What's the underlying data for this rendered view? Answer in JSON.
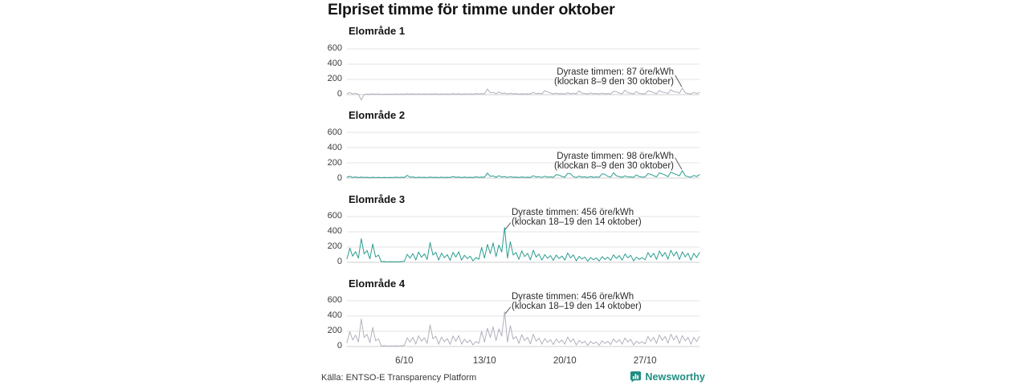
{
  "title": "Elpriset timme för timme under oktober",
  "source": "Källa: ENTSO-E Transparency Platform",
  "brand": {
    "name": "Newsworthy",
    "color": "#208f82",
    "icon": "bar-chart-speech-bubble"
  },
  "colors": {
    "teal_line": "#2a9d8f",
    "gray_line": "#b0b1bc",
    "grid": "#e3e3e3",
    "zero_line": "#cfcfcf",
    "annotation_pointer": "#4a4a4a",
    "text_dark": "#141414"
  },
  "axis": {
    "y_tick_labels": [
      "600",
      "400",
      "200",
      "0"
    ],
    "y_tick_values": [
      600,
      400,
      200,
      0
    ],
    "x_ticks": [
      {
        "label": "6/10",
        "day": 6
      },
      {
        "label": "13/10",
        "day": 13
      },
      {
        "label": "20/10",
        "day": 20
      },
      {
        "label": "27/10",
        "day": 27
      }
    ]
  },
  "chart_data": {
    "type": "line",
    "title": "Elpriset timme för timme under oktober",
    "unit": "öre/kWh",
    "x_range": "1 oktober – 31 oktober",
    "samples_per_day": 4,
    "days": 31,
    "ylim": [
      0,
      600
    ],
    "grid": true,
    "legend": "none (small multiples)",
    "panels": [
      {
        "title": "Elområde 1",
        "color_key": "gray_line",
        "max": {
          "value": 87,
          "label_day": "30 oktober",
          "label_hours": "8–9"
        },
        "annotation": {
          "line1": "Dyraste timmen: 87 öre/kWh",
          "line2": "(klockan 8–9 den 30 oktober)",
          "align": "right"
        },
        "values": [
          12,
          28,
          8,
          18,
          5,
          -70,
          2,
          8,
          5,
          10,
          6,
          9,
          4,
          8,
          5,
          8,
          5,
          9,
          6,
          8,
          6,
          12,
          7,
          10,
          5,
          10,
          6,
          9,
          6,
          11,
          7,
          10,
          5,
          10,
          6,
          9,
          6,
          14,
          8,
          12,
          5,
          12,
          7,
          10,
          6,
          15,
          9,
          14,
          10,
          75,
          25,
          30,
          12,
          35,
          15,
          22,
          8,
          18,
          10,
          14,
          6,
          14,
          8,
          12,
          8,
          30,
          12,
          20,
          10,
          52,
          35,
          22,
          8,
          20,
          10,
          15,
          8,
          25,
          12,
          18,
          10,
          50,
          20,
          15,
          8,
          22,
          10,
          16,
          8,
          20,
          10,
          15,
          10,
          45,
          38,
          20,
          12,
          60,
          25,
          18,
          10,
          40,
          16,
          14,
          10,
          48,
          42,
          25,
          12,
          55,
          30,
          28,
          14,
          65,
          40,
          35,
          20,
          87,
          25,
          15,
          8,
          30,
          15,
          28
        ]
      },
      {
        "title": "Elområde 2",
        "color_key": "teal_line",
        "max": {
          "value": 98,
          "label_day": "30 oktober",
          "label_hours": "8–9"
        },
        "annotation": {
          "line1": "Dyraste timmen: 98 öre/kWh",
          "line2": "(klockan 8–9 den 30 oktober)",
          "align": "right"
        },
        "values": [
          10,
          22,
          8,
          15,
          6,
          14,
          7,
          10,
          5,
          10,
          6,
          9,
          5,
          9,
          6,
          8,
          6,
          12,
          7,
          10,
          8,
          35,
          12,
          15,
          6,
          12,
          7,
          10,
          6,
          13,
          8,
          11,
          6,
          12,
          7,
          10,
          8,
          20,
          10,
          14,
          6,
          14,
          8,
          11,
          7,
          16,
          9,
          14,
          12,
          65,
          22,
          28,
          10,
          30,
          14,
          20,
          8,
          18,
          10,
          14,
          7,
          15,
          9,
          12,
          8,
          30,
          14,
          18,
          8,
          24,
          12,
          16,
          10,
          45,
          40,
          20,
          12,
          62,
          55,
          18,
          8,
          25,
          12,
          16,
          8,
          20,
          10,
          15,
          12,
          55,
          48,
          22,
          14,
          70,
          30,
          18,
          10,
          28,
          14,
          16,
          10,
          42,
          18,
          14,
          14,
          58,
          50,
          30,
          16,
          68,
          55,
          40,
          18,
          78,
          60,
          45,
          30,
          98,
          30,
          18,
          10,
          35,
          20,
          45
        ]
      },
      {
        "title": "Elområde 3",
        "color_key": "teal_line",
        "max": {
          "value": 456,
          "label_day": "14 oktober",
          "label_hours": "18–19"
        },
        "annotation": {
          "line1": "Dyraste timmen: 456 öre/kWh",
          "line2": "(klockan 18–19 den 14 oktober)",
          "align": "left"
        },
        "values": [
          45,
          185,
          80,
          140,
          55,
          310,
          110,
          155,
          45,
          240,
          70,
          95,
          6,
          10,
          5,
          8,
          5,
          8,
          5,
          10,
          12,
          105,
          55,
          115,
          30,
          135,
          65,
          110,
          38,
          260,
          95,
          130,
          28,
          120,
          60,
          100,
          25,
          132,
          68,
          138,
          28,
          92,
          48,
          80,
          18,
          62,
          40,
          195,
          55,
          235,
          115,
          255,
          75,
          225,
          135,
          456,
          55,
          270,
          95,
          128,
          38,
          150,
          75,
          118,
          32,
          158,
          68,
          108,
          28,
          100,
          52,
          88,
          24,
          95,
          48,
          82,
          28,
          122,
          58,
          98,
          18,
          78,
          42,
          68,
          14,
          62,
          34,
          58,
          16,
          74,
          38,
          66,
          24,
          98,
          52,
          88,
          28,
          108,
          58,
          92,
          18,
          68,
          38,
          62,
          32,
          128,
          66,
          118,
          38,
          148,
          78,
          128,
          42,
          158,
          82,
          138,
          38,
          138,
          72,
          118,
          28,
          118,
          62,
          128
        ]
      },
      {
        "title": "Elområde 4",
        "color_key": "gray_line",
        "max": {
          "value": 456,
          "label_day": "14 oktober",
          "label_hours": "18–19"
        },
        "annotation": {
          "line1": "Dyraste timmen: 456 öre/kWh",
          "line2": "(klockan 18–19 den 14 oktober)",
          "align": "left"
        },
        "values": [
          50,
          195,
          85,
          150,
          60,
          360,
          120,
          160,
          50,
          250,
          75,
          100,
          6,
          10,
          5,
          8,
          5,
          9,
          6,
          10,
          14,
          115,
          60,
          120,
          32,
          140,
          70,
          115,
          40,
          285,
          100,
          135,
          30,
          125,
          62,
          105,
          28,
          138,
          70,
          142,
          30,
          95,
          50,
          85,
          20,
          65,
          42,
          200,
          58,
          240,
          118,
          258,
          78,
          230,
          138,
          456,
          58,
          275,
          98,
          132,
          40,
          155,
          78,
          120,
          34,
          160,
          70,
          112,
          30,
          105,
          55,
          90,
          26,
          98,
          50,
          85,
          30,
          125,
          60,
          100,
          20,
          80,
          44,
          70,
          15,
          65,
          36,
          60,
          17,
          76,
          40,
          68,
          26,
          100,
          54,
          90,
          30,
          112,
          60,
          95,
          20,
          70,
          40,
          64,
          34,
          132,
          68,
          120,
          40,
          152,
          80,
          132,
          44,
          162,
          85,
          142,
          40,
          142,
          75,
          122,
          30,
          122,
          64,
          132
        ]
      }
    ]
  }
}
